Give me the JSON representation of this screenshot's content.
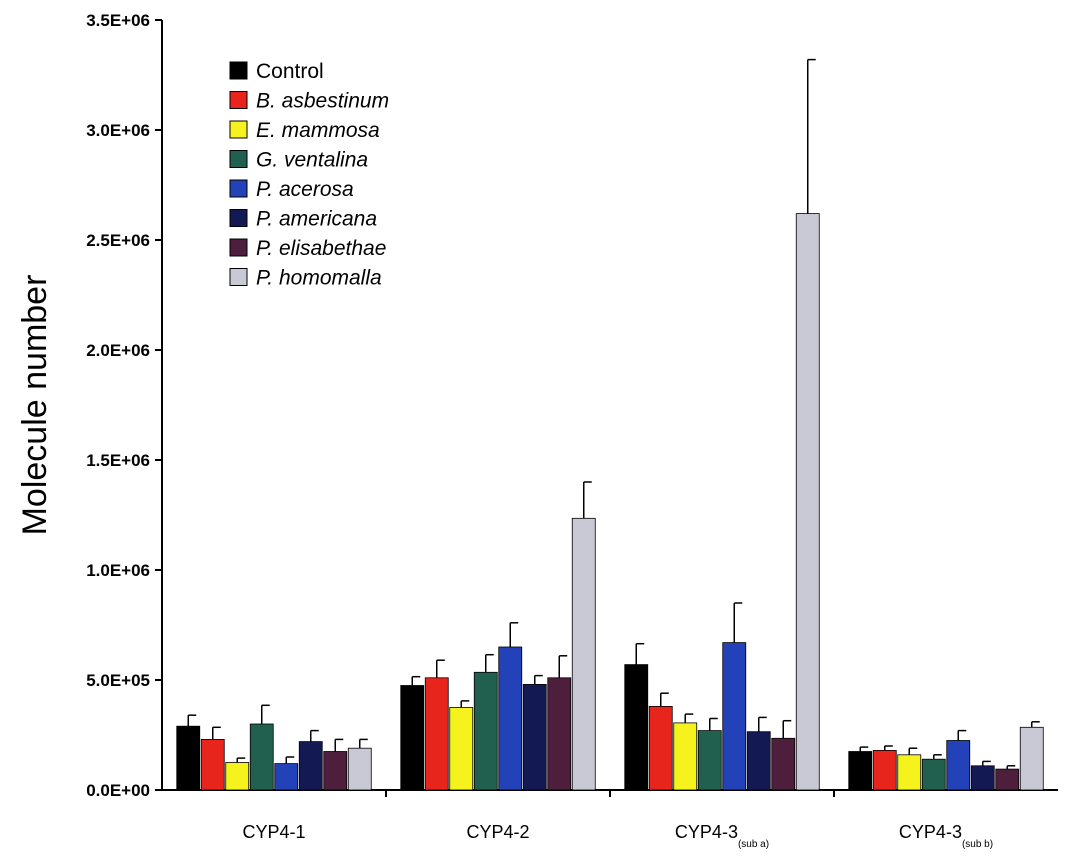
{
  "chart_data": {
    "type": "bar",
    "title": "",
    "xlabel": "",
    "ylabel": "Molecule number",
    "ylim": [
      0,
      3500000
    ],
    "y_ticks": [
      "0.0E+00",
      "5.0E+05",
      "1.0E+06",
      "1.5E+06",
      "2.0E+06",
      "2.5E+06",
      "3.0E+06",
      "3.5E+06"
    ],
    "y_tick_values": [
      0,
      500000,
      1000000,
      1500000,
      2000000,
      2500000,
      3000000,
      3500000
    ],
    "categories": [
      {
        "label": "CYP4-1",
        "sub": ""
      },
      {
        "label": "CYP4-2",
        "sub": ""
      },
      {
        "label": "CYP4-3",
        "sub": "(sub a)"
      },
      {
        "label": "CYP4-3",
        "sub": "(sub b)"
      }
    ],
    "legend_position": "top-left",
    "grid": false,
    "error_bars": true,
    "series": [
      {
        "name": "Control",
        "italic": false,
        "color": "#000000",
        "values": [
          290000,
          475000,
          570000,
          175000
        ],
        "errors": [
          50000,
          40000,
          95000,
          20000
        ]
      },
      {
        "name": "B. asbestinum",
        "italic": true,
        "color": "#e8251c",
        "values": [
          230000,
          510000,
          380000,
          180000
        ],
        "errors": [
          55000,
          80000,
          60000,
          20000
        ]
      },
      {
        "name": "E. mammosa",
        "italic": true,
        "color": "#f6f21e",
        "values": [
          125000,
          375000,
          305000,
          160000
        ],
        "errors": [
          20000,
          30000,
          40000,
          30000
        ]
      },
      {
        "name": "G. ventalina",
        "italic": true,
        "color": "#215f4f",
        "values": [
          300000,
          535000,
          270000,
          140000
        ],
        "errors": [
          85000,
          80000,
          55000,
          20000
        ]
      },
      {
        "name": "P. acerosa",
        "italic": true,
        "color": "#2341b8",
        "values": [
          120000,
          650000,
          670000,
          225000
        ],
        "errors": [
          30000,
          110000,
          180000,
          45000
        ]
      },
      {
        "name": "P. americana",
        "italic": true,
        "color": "#131952",
        "values": [
          220000,
          480000,
          265000,
          110000
        ],
        "errors": [
          50000,
          40000,
          65000,
          20000
        ]
      },
      {
        "name": "P. elisabethae",
        "italic": true,
        "color": "#4e1f3c",
        "values": [
          175000,
          510000,
          235000,
          95000
        ],
        "errors": [
          55000,
          100000,
          80000,
          15000
        ]
      },
      {
        "name": "P. homomalla",
        "italic": true,
        "color": "#c9c9d6",
        "values": [
          190000,
          1235000,
          2620000,
          285000
        ],
        "errors": [
          40000,
          165000,
          700000,
          25000
        ]
      }
    ]
  }
}
